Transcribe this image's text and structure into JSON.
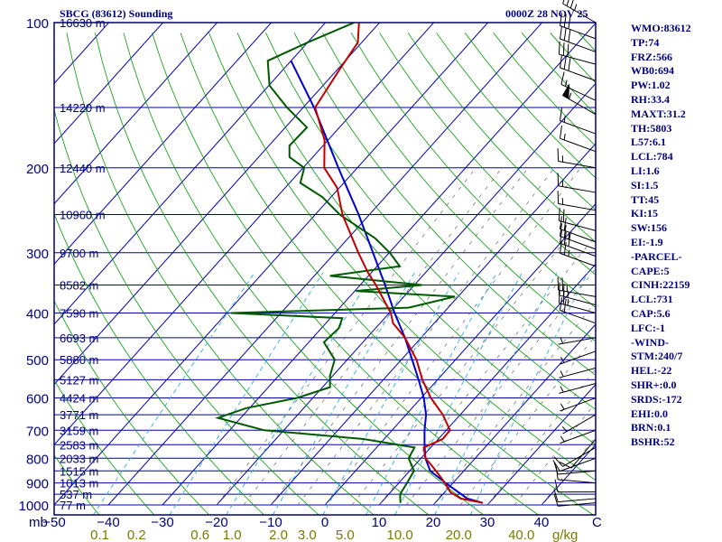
{
  "header": {
    "station": "SBCG (83612) Sounding",
    "valid_time": "0000Z 28 NOV 25"
  },
  "indices": [
    "WMO:83612",
    "TP:74",
    "FRZ:566",
    "WB0:694",
    "PW:1.02",
    "RH:33.4",
    "MAXT:31.2",
    "TH:5803",
    "L57:6.1",
    "LCL:784",
    "LI:1.6",
    "SI:1.5",
    "TT:45",
    "KI:15",
    "SW:156",
    "EI:-1.9",
    "-PARCEL-",
    "CAPE:5",
    "CINH:22159",
    "LCL:731",
    "CAP:5.6",
    "LFC:-1",
    "-WIND-",
    "STM:240/7",
    "HEL:-22",
    "SHR+:0.0",
    "SRDS:-172",
    "EHI:0.0",
    "BRN:0.1",
    "BSHR:52"
  ],
  "colors": {
    "frame": "#00007a",
    "isobar": "#0000aa",
    "isotherm": "#0000aa",
    "dry_adiabat": "#009900",
    "mixing_ratio": "#3cb4e6",
    "moist_adiabat": "#666666",
    "temperature": "#c00000",
    "dewpoint": "#005a00",
    "parcel": "#0000cc",
    "mixing_ratio_labels": "#7a7a00",
    "wind": "#000000"
  },
  "chart_data": {
    "type": "skew-t",
    "title": "SBCG (83612) Sounding",
    "pressure_unit": "mb",
    "temperature_unit": "C",
    "mixing_ratio_unit": "g/kg",
    "pressure_range": [
      1000,
      100
    ],
    "temperature_range": [
      -50,
      50
    ],
    "pressure_labels": [
      {
        "p": 100,
        "label": "100"
      },
      {
        "p": 200,
        "label": "200"
      },
      {
        "p": 300,
        "label": "300"
      },
      {
        "p": 400,
        "label": "400"
      },
      {
        "p": 500,
        "label": "500"
      },
      {
        "p": 600,
        "label": "600"
      },
      {
        "p": 700,
        "label": "700"
      },
      {
        "p": 800,
        "label": "800"
      },
      {
        "p": 900,
        "label": "900"
      },
      {
        "p": 1000,
        "label": "1000"
      }
    ],
    "height_labels": [
      {
        "p": 100,
        "label": "16630 m"
      },
      {
        "p": 150,
        "label": "14220 m"
      },
      {
        "p": 200,
        "label": "12440 m"
      },
      {
        "p": 250,
        "label": "10960 m"
      },
      {
        "p": 300,
        "label": "9700 m"
      },
      {
        "p": 350,
        "label": "8582 m"
      },
      {
        "p": 400,
        "label": "7590 m"
      },
      {
        "p": 450,
        "label": "6693 m"
      },
      {
        "p": 500,
        "label": "5880 m"
      },
      {
        "p": 550,
        "label": "5127 m"
      },
      {
        "p": 600,
        "label": "4424 m"
      },
      {
        "p": 650,
        "label": "3771 m"
      },
      {
        "p": 700,
        "label": "3159 m"
      },
      {
        "p": 750,
        "label": "2583 m"
      },
      {
        "p": 800,
        "label": "2033 m"
      },
      {
        "p": 850,
        "label": "1515 m"
      },
      {
        "p": 900,
        "label": "1013 m"
      },
      {
        "p": 950,
        "label": "537 m"
      },
      {
        "p": 1000,
        "label": "77 m"
      }
    ],
    "temperature_ticks": [
      -50,
      -40,
      -30,
      -20,
      -10,
      0,
      10,
      20,
      30,
      40
    ],
    "temperature_tick_labels": [
      "−50",
      "−40",
      "−30",
      "−20",
      "−10",
      "0",
      "10",
      "20",
      "30",
      "40"
    ],
    "corner_labels": {
      "left": "mb",
      "right": "C"
    },
    "mixing_ratio_labels": [
      {
        "w": 0.1,
        "label": "0.1"
      },
      {
        "w": 0.2,
        "label": "0.2"
      },
      {
        "w": 0.6,
        "label": "0.6"
      },
      {
        "w": 1.0,
        "label": "1.0"
      },
      {
        "w": 2.0,
        "label": "2.0"
      },
      {
        "w": 3.0,
        "label": "3.0"
      },
      {
        "w": 5.0,
        "label": "5.0"
      },
      {
        "w": 10.0,
        "label": "10.0"
      },
      {
        "w": 20.0,
        "label": "20.0"
      },
      {
        "w": 40.0,
        "label": "40.0"
      }
    ],
    "mixing_ratio_lines": [
      0.1,
      0.4,
      1,
      2,
      4,
      7,
      10,
      16,
      24
    ],
    "temperature_profile": [
      {
        "p": 990,
        "t": 28.8
      },
      {
        "p": 970,
        "t": 24.0
      },
      {
        "p": 940,
        "t": 21.0
      },
      {
        "p": 900,
        "t": 18.5
      },
      {
        "p": 860,
        "t": 15.6
      },
      {
        "p": 825,
        "t": 12.9
      },
      {
        "p": 800,
        "t": 10.8
      },
      {
        "p": 760,
        "t": 8.7
      },
      {
        "p": 730,
        "t": 10.8
      },
      {
        "p": 700,
        "t": 10.7
      },
      {
        "p": 650,
        "t": 6.8
      },
      {
        "p": 600,
        "t": 1.8
      },
      {
        "p": 550,
        "t": -2.8
      },
      {
        "p": 500,
        "t": -7.2
      },
      {
        "p": 450,
        "t": -13.0
      },
      {
        "p": 420,
        "t": -17.6
      },
      {
        "p": 400,
        "t": -19.7
      },
      {
        "p": 350,
        "t": -27.1
      },
      {
        "p": 330,
        "t": -30.6
      },
      {
        "p": 300,
        "t": -35.7
      },
      {
        "p": 250,
        "t": -45.0
      },
      {
        "p": 220,
        "t": -50.4
      },
      {
        "p": 200,
        "t": -56.1
      },
      {
        "p": 175,
        "t": -60.7
      },
      {
        "p": 150,
        "t": -67.8
      },
      {
        "p": 125,
        "t": -69.6
      },
      {
        "p": 110,
        "t": -70.7
      },
      {
        "p": 100,
        "t": -73.8
      }
    ],
    "dewpoint_profile": [
      {
        "p": 990,
        "t": 13.6
      },
      {
        "p": 950,
        "t": 12.1
      },
      {
        "p": 900,
        "t": 11.5
      },
      {
        "p": 850,
        "t": 10.8
      },
      {
        "p": 800,
        "t": 7.7
      },
      {
        "p": 760,
        "t": 7.0
      },
      {
        "p": 730,
        "t": -3.8
      },
      {
        "p": 700,
        "t": -23.6
      },
      {
        "p": 660,
        "t": -34.2
      },
      {
        "p": 630,
        "t": -30.6
      },
      {
        "p": 600,
        "t": -22.9
      },
      {
        "p": 570,
        "t": -18.6
      },
      {
        "p": 540,
        "t": -20.5
      },
      {
        "p": 500,
        "t": -22.3
      },
      {
        "p": 460,
        "t": -27.2
      },
      {
        "p": 430,
        "t": -26.8
      },
      {
        "p": 410,
        "t": -27.8
      },
      {
        "p": 400,
        "t": -49.2
      },
      {
        "p": 390,
        "t": -17.3
      },
      {
        "p": 370,
        "t": -10.6
      },
      {
        "p": 360,
        "t": -29.8
      },
      {
        "p": 350,
        "t": -18.6
      },
      {
        "p": 335,
        "t": -37.1
      },
      {
        "p": 320,
        "t": -25.8
      },
      {
        "p": 300,
        "t": -29.9
      },
      {
        "p": 280,
        "t": -35.0
      },
      {
        "p": 250,
        "t": -45.5
      },
      {
        "p": 230,
        "t": -51.6
      },
      {
        "p": 215,
        "t": -58.0
      },
      {
        "p": 200,
        "t": -59.8
      },
      {
        "p": 190,
        "t": -64.3
      },
      {
        "p": 180,
        "t": -66.2
      },
      {
        "p": 165,
        "t": -66.0
      },
      {
        "p": 150,
        "t": -73.0
      },
      {
        "p": 135,
        "t": -79.9
      },
      {
        "p": 120,
        "t": -84.3
      },
      {
        "p": 110,
        "t": -80.0
      },
      {
        "p": 100,
        "t": -74.7
      }
    ],
    "parcel_profile": [
      {
        "p": 990,
        "t": 28.8
      },
      {
        "p": 970,
        "t": 25.2
      },
      {
        "p": 950,
        "t": 23.4
      },
      {
        "p": 900,
        "t": 18.6
      },
      {
        "p": 850,
        "t": 13.8
      },
      {
        "p": 800,
        "t": 10.8
      },
      {
        "p": 750,
        "t": 8.4
      },
      {
        "p": 700,
        "t": 6.0
      },
      {
        "p": 650,
        "t": 3.7
      },
      {
        "p": 600,
        "t": 0.5
      },
      {
        "p": 550,
        "t": -3.5
      },
      {
        "p": 500,
        "t": -8.0
      },
      {
        "p": 450,
        "t": -13.0
      },
      {
        "p": 400,
        "t": -19.0
      },
      {
        "p": 350,
        "t": -25.4
      },
      {
        "p": 300,
        "t": -33.0
      },
      {
        "p": 250,
        "t": -42.0
      },
      {
        "p": 200,
        "t": -53.5
      },
      {
        "p": 150,
        "t": -68.0
      },
      {
        "p": 120,
        "t": -80.0
      }
    ],
    "wind_barbs": [
      {
        "p": 990,
        "dir": 265,
        "spd": 10
      },
      {
        "p": 970,
        "dir": 265,
        "spd": 10
      },
      {
        "p": 940,
        "dir": 270,
        "spd": 10
      },
      {
        "p": 900,
        "dir": 275,
        "spd": 10
      },
      {
        "p": 850,
        "dir": 265,
        "spd": 10
      },
      {
        "p": 800,
        "dir": 250,
        "spd": 10
      },
      {
        "p": 760,
        "dir": 240,
        "spd": 10
      },
      {
        "p": 730,
        "dir": 220,
        "spd": 10
      },
      {
        "p": 700,
        "dir": 250,
        "spd": 5
      },
      {
        "p": 650,
        "dir": 240,
        "spd": 5
      },
      {
        "p": 600,
        "dir": 250,
        "spd": 5
      },
      {
        "p": 560,
        "dir": 255,
        "spd": 5
      },
      {
        "p": 520,
        "dir": 255,
        "spd": 5
      },
      {
        "p": 480,
        "dir": 250,
        "spd": 5
      },
      {
        "p": 450,
        "dir": 260,
        "spd": 5
      },
      {
        "p": 420,
        "dir": 290,
        "spd": 20
      },
      {
        "p": 400,
        "dir": 285,
        "spd": 25
      },
      {
        "p": 385,
        "dir": 285,
        "spd": 25
      },
      {
        "p": 370,
        "dir": 280,
        "spd": 25
      },
      {
        "p": 320,
        "dir": 290,
        "spd": 25
      },
      {
        "p": 305,
        "dir": 290,
        "spd": 30
      },
      {
        "p": 295,
        "dir": 290,
        "spd": 25
      },
      {
        "p": 285,
        "dir": 290,
        "spd": 20
      },
      {
        "p": 270,
        "dir": 285,
        "spd": 20
      },
      {
        "p": 245,
        "dir": 280,
        "spd": 15
      },
      {
        "p": 225,
        "dir": 280,
        "spd": 15
      },
      {
        "p": 200,
        "dir": 280,
        "spd": 15
      },
      {
        "p": 185,
        "dir": 290,
        "spd": 15
      },
      {
        "p": 170,
        "dir": 290,
        "spd": 15
      },
      {
        "p": 155,
        "dir": 300,
        "spd": 55
      },
      {
        "p": 145,
        "dir": 295,
        "spd": 15
      },
      {
        "p": 132,
        "dir": 290,
        "spd": 30
      },
      {
        "p": 122,
        "dir": 285,
        "spd": 30
      },
      {
        "p": 115,
        "dir": 290,
        "spd": 30
      },
      {
        "p": 108,
        "dir": 290,
        "spd": 30
      },
      {
        "p": 100,
        "dir": 300,
        "spd": 35
      }
    ]
  }
}
